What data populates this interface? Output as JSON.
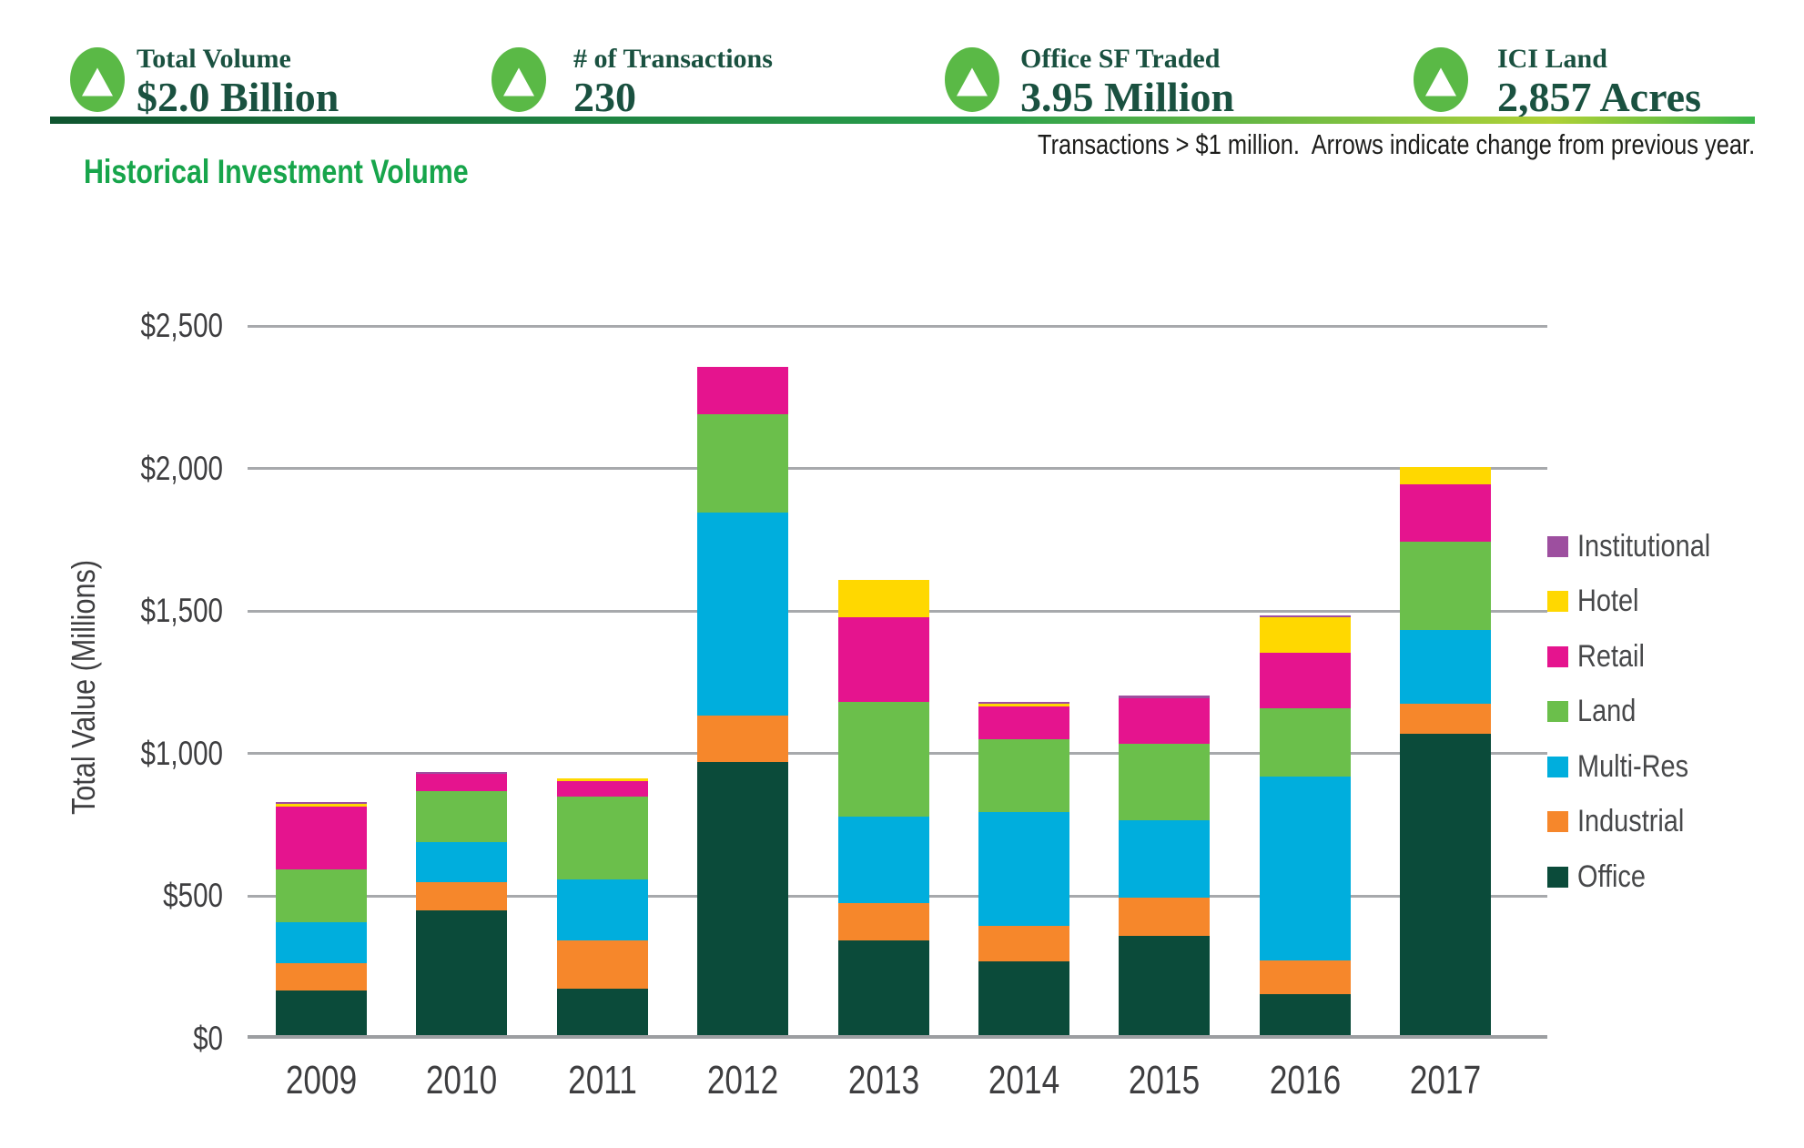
{
  "header": {
    "stats": [
      {
        "label": "Total Volume",
        "value": "$2.0 Billion",
        "trend": "up"
      },
      {
        "label": "# of Transactions",
        "value": "230",
        "trend": "up"
      },
      {
        "label": "Office SF Traded",
        "value": "3.95 Million",
        "trend": "up"
      },
      {
        "label": "ICI Land",
        "value": "2,857 Acres",
        "trend": "up"
      }
    ],
    "note": "Transactions > $1 million.  Arrows indicate change from previous year."
  },
  "colors": {
    "stat_text": "#1a5140",
    "stat_circle": "#5ab946",
    "title_green": "#17a54b",
    "gridline": "#a7a9ac",
    "axis_text": "#3e3e40"
  },
  "chart_data": {
    "type": "bar",
    "stacked": true,
    "title": "Historical Investment Volume",
    "xlabel": "",
    "ylabel": "Total Value (Millions)",
    "ylim": [
      0,
      2500
    ],
    "ytick_step": 500,
    "ytick_labels": [
      "$0",
      "$500",
      "$1,000",
      "$1,500",
      "$2,000",
      "$2,500"
    ],
    "grid": "horizontal",
    "legend_position": "right",
    "legend_order_top_to_bottom": [
      "Institutional",
      "Hotel",
      "Retail",
      "Land",
      "Multi-Res",
      "Industrial",
      "Office"
    ],
    "categories": [
      "2009",
      "2010",
      "2011",
      "2012",
      "2013",
      "2014",
      "2015",
      "2016",
      "2017"
    ],
    "series": [
      {
        "name": "Office",
        "color": "#0b4b3a",
        "values": [
          170,
          450,
          175,
          970,
          345,
          270,
          360,
          155,
          1070
        ]
      },
      {
        "name": "Industrial",
        "color": "#f6872b",
        "values": [
          95,
          100,
          170,
          165,
          130,
          125,
          135,
          120,
          105
        ]
      },
      {
        "name": "Multi-Res",
        "color": "#00aedd",
        "values": [
          145,
          140,
          215,
          710,
          305,
          400,
          270,
          645,
          260
        ]
      },
      {
        "name": "Land",
        "color": "#6bbf4b",
        "values": [
          185,
          180,
          290,
          345,
          400,
          255,
          270,
          240,
          310
        ]
      },
      {
        "name": "Retail",
        "color": "#e5148e",
        "values": [
          220,
          60,
          55,
          165,
          300,
          115,
          160,
          195,
          200
        ]
      },
      {
        "name": "Hotel",
        "color": "#ffd800",
        "values": [
          8,
          0,
          8,
          0,
          130,
          10,
          0,
          125,
          60
        ]
      },
      {
        "name": "Institutional",
        "color": "#9d4f9f",
        "values": [
          8,
          5,
          0,
          0,
          0,
          5,
          10,
          5,
          0
        ]
      }
    ],
    "totals": [
      831,
      935,
      913,
      2355,
      1610,
      1180,
      1205,
      1485,
      2005
    ]
  }
}
